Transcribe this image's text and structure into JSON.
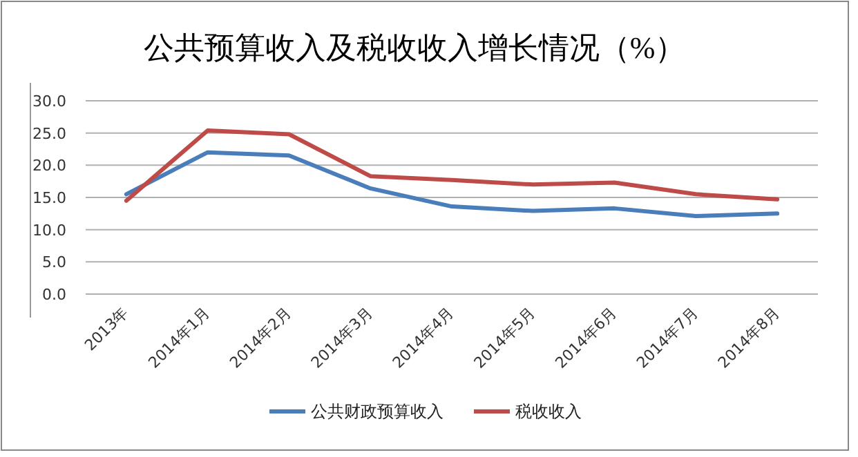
{
  "chart_data": {
    "type": "line",
    "title": "公共预算收入及税收收入增长情况（%）",
    "categories": [
      "2013年",
      "2014年1月",
      "2014年2月",
      "2014年3月",
      "2014年4月",
      "2014年5月",
      "2014年6月",
      "2014年7月",
      "2014年8月"
    ],
    "series": [
      {
        "name": "公共财政预算收入",
        "color": "#4a7ebb",
        "values": [
          15.5,
          22.0,
          21.5,
          16.4,
          13.6,
          12.9,
          13.3,
          12.1,
          12.5
        ]
      },
      {
        "name": "税收收入",
        "color": "#be4b48",
        "values": [
          14.5,
          25.4,
          24.8,
          18.3,
          17.7,
          17.0,
          17.3,
          15.5,
          14.7
        ]
      }
    ],
    "ylim": [
      0,
      30
    ],
    "yticks": [
      {
        "value": 0,
        "label": "0.0"
      },
      {
        "value": 5,
        "label": "5.0"
      },
      {
        "value": 10,
        "label": "10.0"
      },
      {
        "value": 15,
        "label": "15.0"
      },
      {
        "value": 20,
        "label": "20.0"
      },
      {
        "value": 25,
        "label": "25.0"
      },
      {
        "value": 30,
        "label": "30.0"
      }
    ],
    "grid": "y",
    "legend": "bottom",
    "marker": "none",
    "line_style": "solid"
  }
}
